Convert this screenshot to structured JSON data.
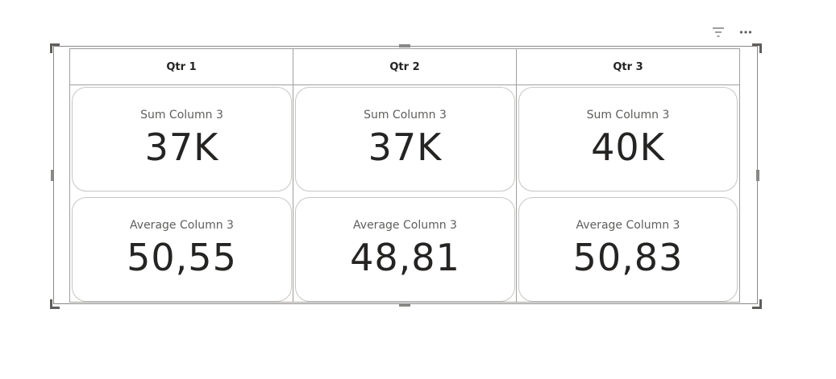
{
  "matrix": {
    "columns": [
      {
        "header": "Qtr 1",
        "cards": [
          {
            "label": "Sum Column 3",
            "value": "37K"
          },
          {
            "label": "Average Column 3",
            "value": "50,55"
          }
        ]
      },
      {
        "header": "Qtr 2",
        "cards": [
          {
            "label": "Sum Column 3",
            "value": "37K"
          },
          {
            "label": "Average Column 3",
            "value": "48,81"
          }
        ]
      },
      {
        "header": "Qtr 3",
        "cards": [
          {
            "label": "Sum Column 3",
            "value": "40K"
          },
          {
            "label": "Average Column 3",
            "value": "50,83"
          }
        ]
      }
    ]
  },
  "visual_header": {
    "icons": [
      "filter-icon",
      "more-options-icon"
    ]
  },
  "colors": {
    "text": "#252423",
    "label": "#605e5c",
    "border": "#a19f9d",
    "card_border": "#c8c6c4"
  }
}
